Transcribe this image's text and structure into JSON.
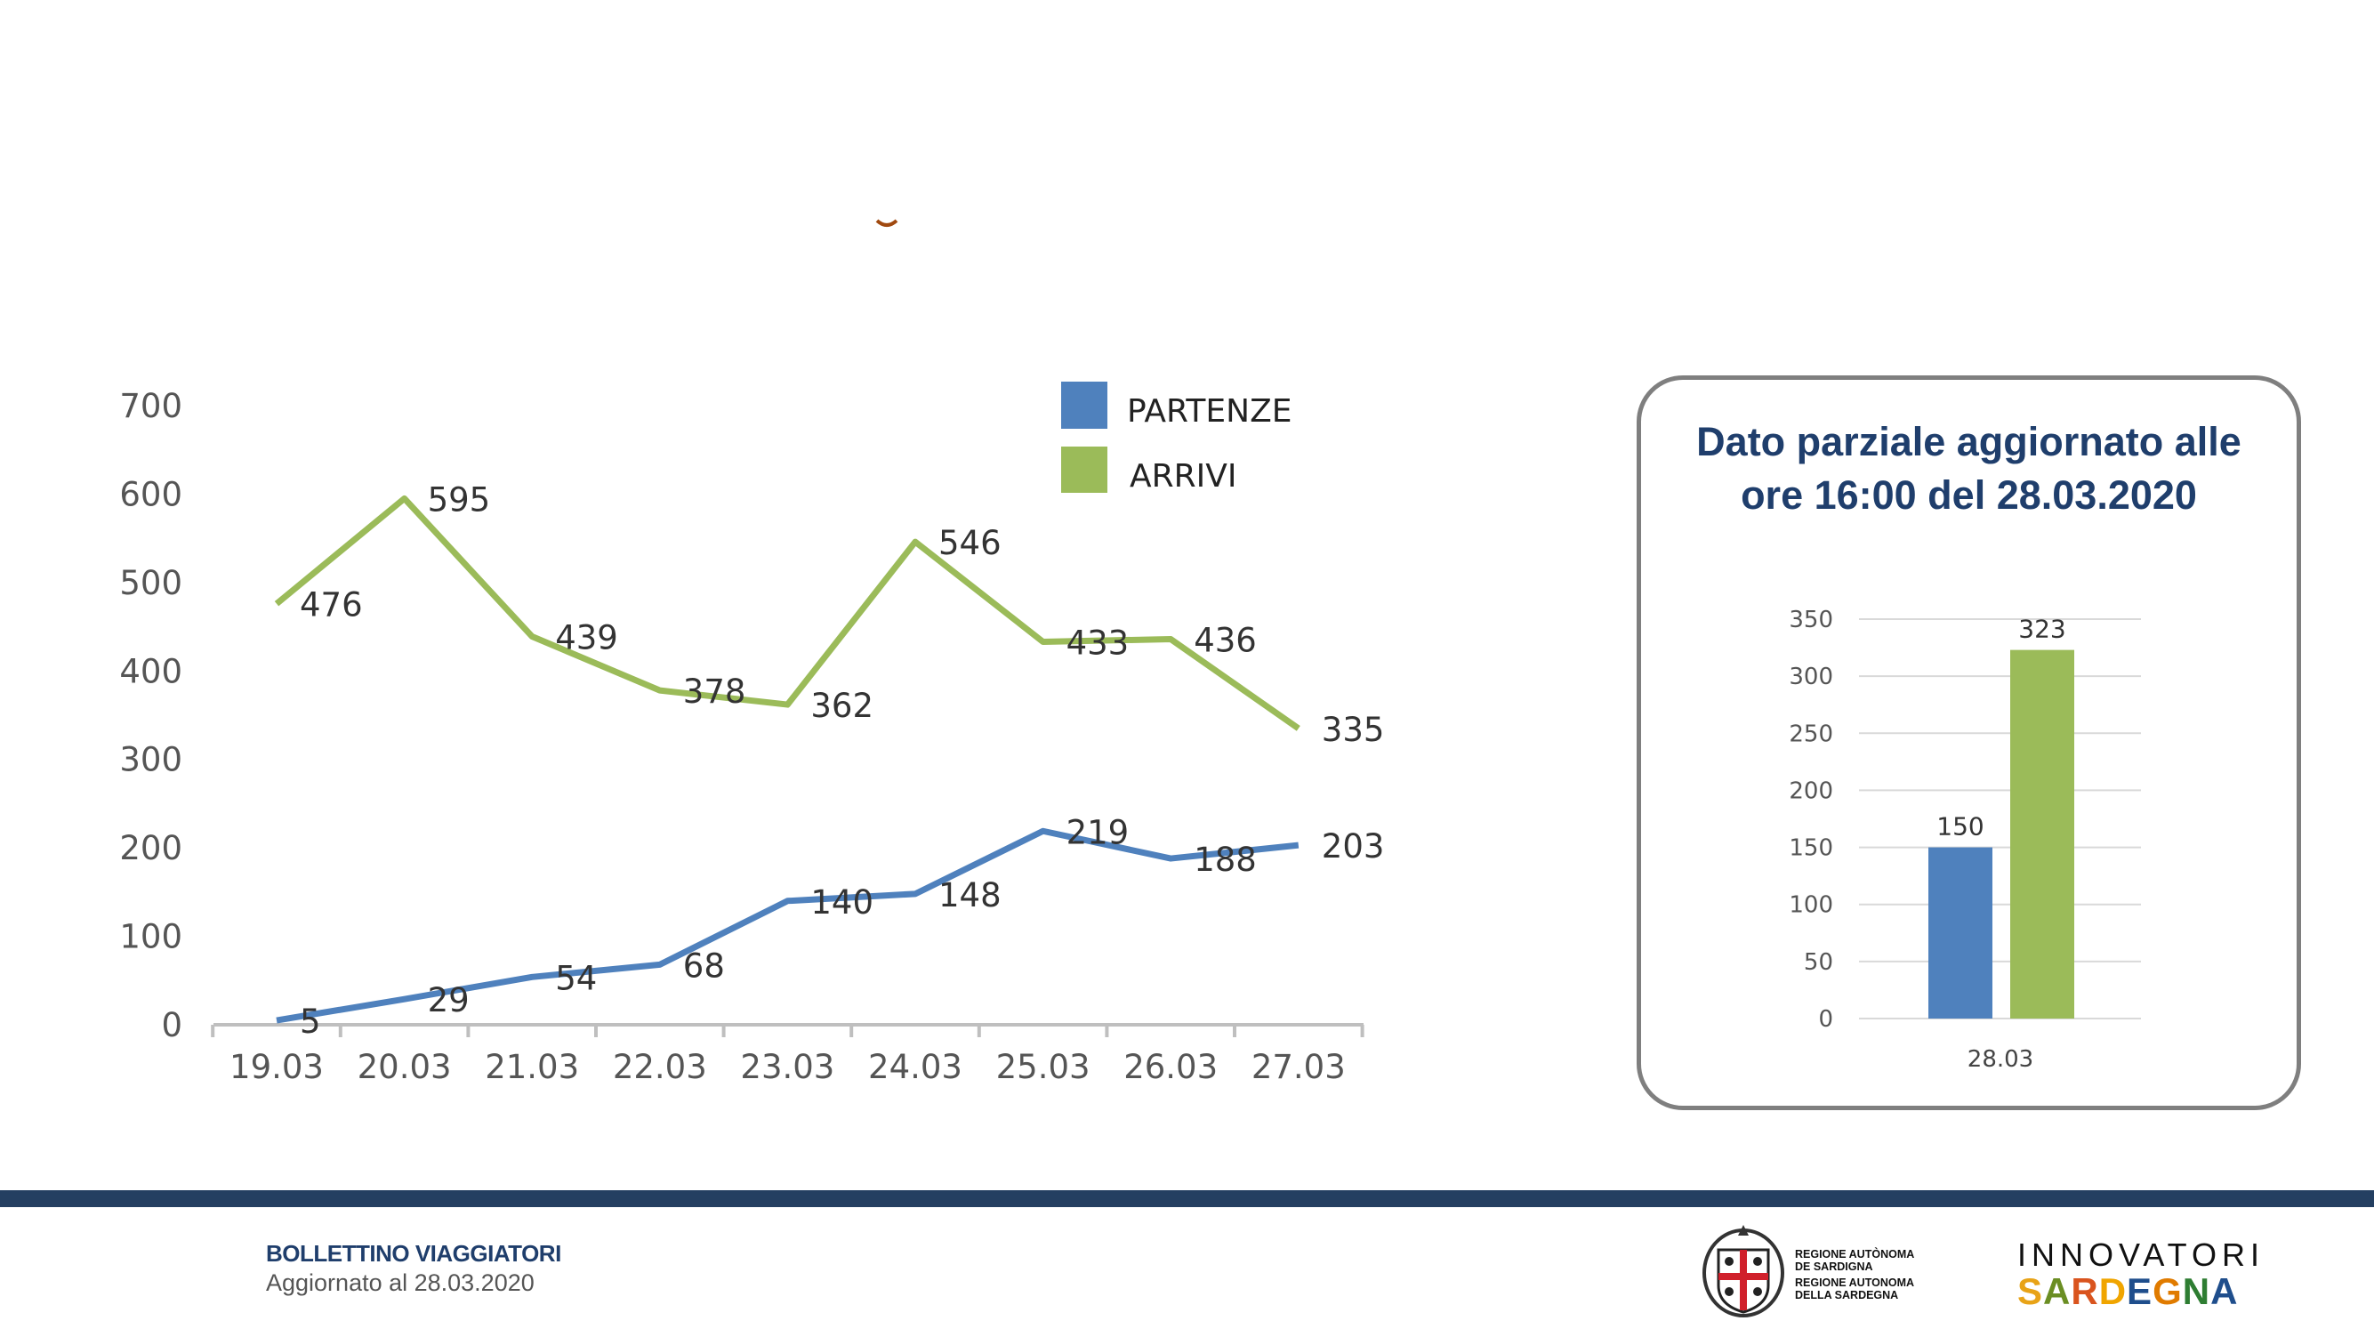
{
  "chart_data": [
    {
      "type": "line",
      "title": "",
      "xlabel": "",
      "ylabel": "",
      "categories": [
        "19.03",
        "20.03",
        "21.03",
        "22.03",
        "23.03",
        "24.03",
        "25.03",
        "26.03",
        "27.03"
      ],
      "yticks": [
        "0",
        "100",
        "200",
        "300",
        "400",
        "500",
        "600",
        "700"
      ],
      "ylim": [
        0,
        700
      ],
      "grid": false,
      "legend_position": "top-right",
      "series": [
        {
          "name": "PARTENZE",
          "color": "#4f81bd",
          "values": [
            5,
            29,
            54,
            68,
            140,
            148,
            219,
            188,
            203
          ]
        },
        {
          "name": "ARRIVI",
          "color": "#9bbb59",
          "values": [
            476,
            595,
            439,
            378,
            362,
            546,
            433,
            436,
            335
          ]
        }
      ]
    },
    {
      "type": "bar",
      "title": "Dato parziale aggiornato alle ore 16:00 del 28.03.2020",
      "title_lines": [
        "Dato parziale aggiornato alle",
        "ore 16:00 del 28.03.2020"
      ],
      "categories": [
        "28.03"
      ],
      "yticks": [
        "0",
        "50",
        "100",
        "150",
        "200",
        "250",
        "300",
        "350"
      ],
      "ylim": [
        0,
        350
      ],
      "grid": true,
      "series": [
        {
          "name": "PARTENZE",
          "color": "#4f81bd",
          "values": [
            150
          ]
        },
        {
          "name": "ARRIVI",
          "color": "#9bbb59",
          "values": [
            323
          ]
        }
      ]
    }
  ],
  "footer": {
    "title": "BOLLETTINO VIAGGIATORI",
    "subtitle": "Aggiornato al 28.03.2020",
    "band_color": "#243f61",
    "region_logo_lines": [
      "REGIONE AUTÒNOMA",
      "DE SARDIGNA",
      "REGIONE AUTONOMA",
      "DELLA SARDEGNA"
    ],
    "innovatori_line1": "INNOVATORI",
    "innovatori_line2": "SARDEGNA"
  }
}
